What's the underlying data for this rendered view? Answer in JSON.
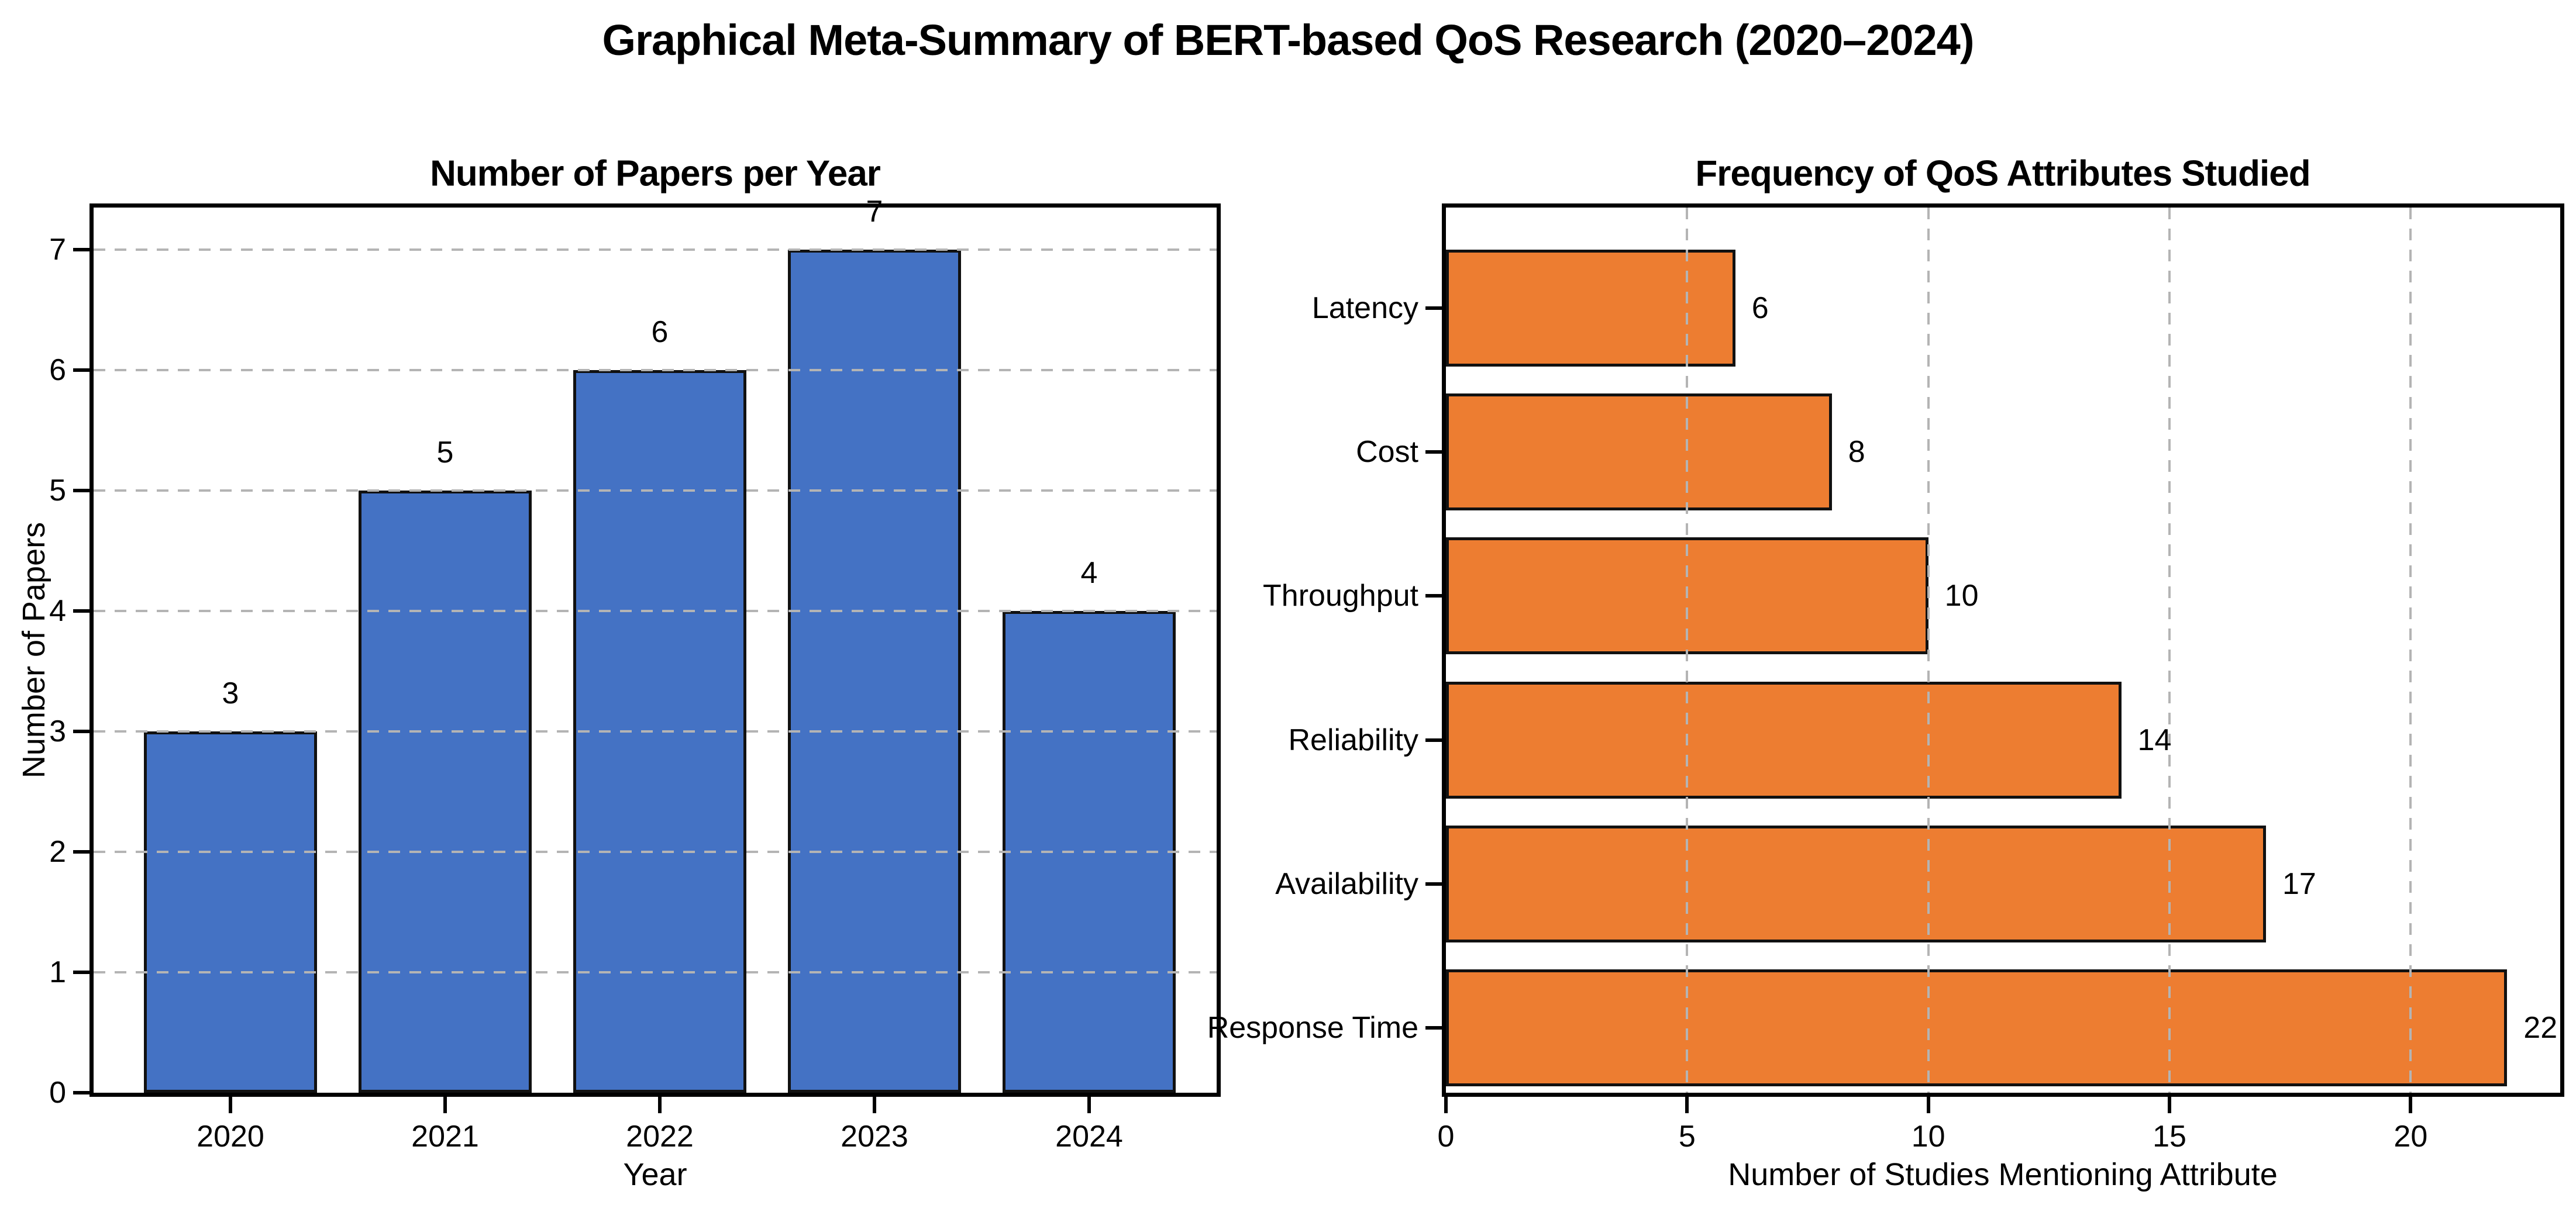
{
  "figure": {
    "title": "Graphical Meta-Summary of BERT-based QoS Research (2020–2024)"
  },
  "chart_data": [
    {
      "type": "bar",
      "orientation": "vertical",
      "title": "Number of Papers per Year",
      "xlabel": "Year",
      "ylabel": "Number of Papers",
      "categories": [
        "2020",
        "2021",
        "2022",
        "2023",
        "2024"
      ],
      "values": [
        3,
        5,
        6,
        7,
        4
      ],
      "value_labels": [
        "3",
        "5",
        "6",
        "7",
        "4"
      ],
      "yticks": [
        0,
        1,
        2,
        3,
        4,
        5,
        6,
        7
      ],
      "ylim": [
        0,
        7.35
      ],
      "bar_color": "#4472C4",
      "bar_edge_color": "#111111",
      "grid": "horizontal-dashed",
      "grid_color": "#b4b4b4",
      "legend": "none"
    },
    {
      "type": "bar",
      "orientation": "horizontal",
      "title": "Frequency of QoS Attributes Studied",
      "xlabel": "Number of Studies Mentioning Attribute",
      "ylabel": "",
      "categories": [
        "Latency",
        "Cost",
        "Throughput",
        "Reliability",
        "Availability",
        "Response Time"
      ],
      "values": [
        6,
        8,
        10,
        14,
        17,
        22
      ],
      "value_labels": [
        "6",
        "8",
        "10",
        "14",
        "17",
        "22"
      ],
      "xticks": [
        0,
        5,
        10,
        15,
        20
      ],
      "xlim": [
        0,
        23.1
      ],
      "bar_color": "#ED7D31",
      "bar_edge_color": "#111111",
      "grid": "vertical-dashed",
      "grid_color": "#b4b4b4",
      "legend": "none"
    }
  ]
}
